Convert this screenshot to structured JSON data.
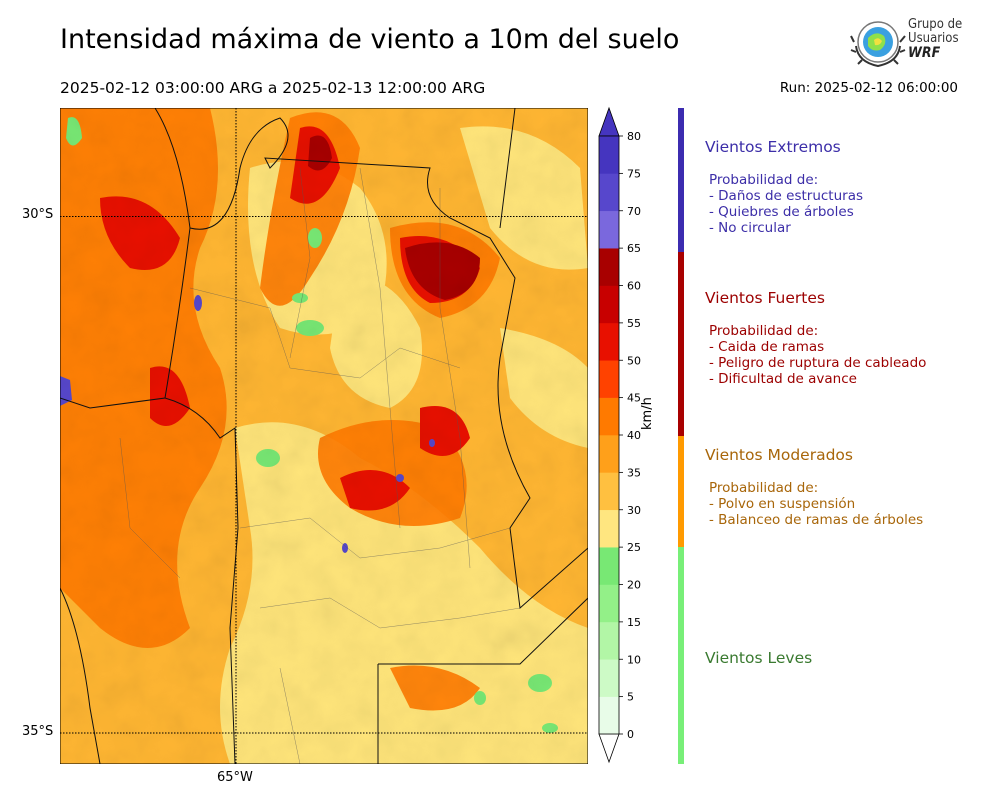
{
  "header": {
    "title": "Intensidad máxima de viento a 10m del suelo",
    "period": "2025-02-12 03:00:00 ARG  a  2025-02-13 12:00:00 ARG",
    "run": "Run: 2025-02-12 06:00:00"
  },
  "logo": {
    "line1": "Grupo de",
    "line2": "Usuarios",
    "line3": "WRF"
  },
  "map": {
    "lat_labels": [
      {
        "text": "30°S",
        "lat": -30
      },
      {
        "text": "35°S",
        "lat": -35
      }
    ],
    "lon_labels": [
      {
        "text": "65°W",
        "lon": -65
      }
    ],
    "lat_range": [
      -28.95,
      -35.3
    ],
    "lon_range": [
      -66.7,
      -61.6
    ],
    "gridlines": "dotted"
  },
  "colorbar": {
    "units": "km/h",
    "ticks": [
      0,
      5,
      10,
      15,
      20,
      25,
      30,
      35,
      40,
      45,
      50,
      55,
      60,
      65,
      70,
      75,
      80
    ],
    "colors": [
      "#e8fce8",
      "#cdfac6",
      "#b2f6a6",
      "#93f088",
      "#78e874",
      "#ffe680",
      "#ffc040",
      "#ffa01a",
      "#ff7a00",
      "#ff4200",
      "#e81000",
      "#c80000",
      "#a80000",
      "#7a68dd",
      "#5747cc",
      "#4535bf"
    ],
    "extend": "both"
  },
  "categories": [
    {
      "name": "Vientos Extremos",
      "color": "#3c2ea8",
      "lines": [
        "Probabilidad de:",
        "- Daños de estructuras",
        "- Quiebres de árboles",
        "- No circular"
      ]
    },
    {
      "name": "Vientos Fuertes",
      "color": "#9c0000",
      "lines": [
        "Probabilidad de:",
        "- Caida de ramas",
        "- Peligro de ruptura de cableado",
        "- Dificultad de avance"
      ]
    },
    {
      "name": "Vientos Moderados",
      "color": "#a8660a",
      "lines": [
        "Probabilidad de:",
        "- Polvo en suspensión",
        "- Balanceo de ramas de árboles"
      ]
    },
    {
      "name": "Vientos Leves",
      "color": "#3a7a30",
      "lines": []
    }
  ],
  "category_bar_colors": [
    "#3c2cb0",
    "#a80000",
    "#ff9a00",
    "#78ef78"
  ]
}
